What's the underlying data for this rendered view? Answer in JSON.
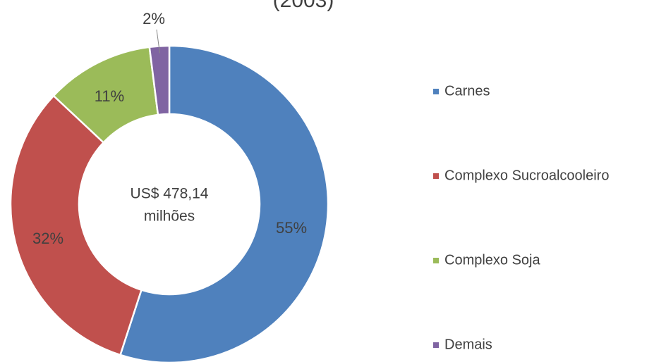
{
  "chart_data": {
    "type": "donut",
    "title": "(2003)",
    "center_label": [
      "US$ 478,14",
      "milhões"
    ],
    "categories": [
      "Carnes",
      "Complexo Sucroalcooleiro",
      "Complexo Soja",
      "Demais"
    ],
    "values": [
      55,
      32,
      11,
      2
    ],
    "value_labels": [
      "55%",
      "32%",
      "11%",
      "2%"
    ],
    "colors": [
      "#4f81bd",
      "#c0504d",
      "#9bbb59",
      "#8064a2"
    ],
    "legend": "right"
  }
}
